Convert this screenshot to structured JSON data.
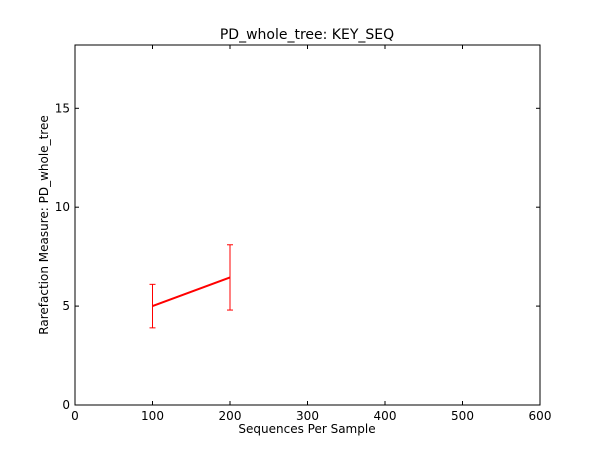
{
  "chart_data": {
    "type": "line",
    "title": "PD_whole_tree: KEY_SEQ",
    "xlabel": "Sequences Per Sample",
    "ylabel": "Rarefaction Measure: PD_whole_tree",
    "xlim": [
      0,
      600
    ],
    "ylim": [
      0,
      18.2
    ],
    "xticks": [
      0,
      100,
      200,
      300,
      400,
      500,
      600
    ],
    "yticks": [
      0,
      5,
      10,
      15
    ],
    "grid": false,
    "legend": "none",
    "series": [
      {
        "color": "#ff0000",
        "points": [
          {
            "x": 100,
            "y": 5.0,
            "err_low": 3.9,
            "err_high": 6.1
          },
          {
            "x": 200,
            "y": 6.45,
            "err_low": 4.8,
            "err_high": 8.1
          }
        ]
      }
    ]
  }
}
